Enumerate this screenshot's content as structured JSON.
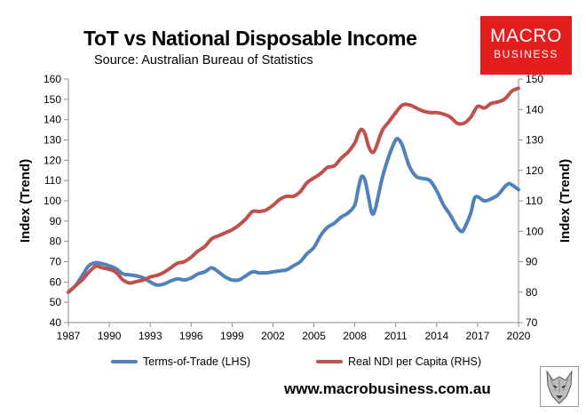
{
  "header": {
    "title": "ToT vs National Disposable Income",
    "subtitle": "Source: Australian Bureau of Statistics"
  },
  "logo": {
    "line1": "MACRO",
    "line2": "BUSINESS",
    "color": "#e41e1e"
  },
  "footer": {
    "website": "www.macrobusiness.com.au",
    "mascot_icon": "wolf-head-icon"
  },
  "chart_data": {
    "type": "line",
    "ylabel_left": "Index (Trend)",
    "ylabel_right": "Index (Trend)",
    "xlim": [
      1987,
      2020
    ],
    "x_ticks": [
      1987,
      1990,
      1993,
      1996,
      1999,
      2002,
      2005,
      2008,
      2011,
      2014,
      2017,
      2020
    ],
    "ylim_left": [
      40,
      160
    ],
    "y_ticks_left": [
      40,
      50,
      60,
      70,
      80,
      90,
      100,
      110,
      120,
      130,
      140,
      150,
      160
    ],
    "ylim_right": [
      70,
      150
    ],
    "y_ticks_right": [
      70,
      80,
      90,
      100,
      110,
      120,
      130,
      140,
      150
    ],
    "grid": false,
    "legend_position": "bottom",
    "series": [
      {
        "name": "Terms-of-Trade (LHS)",
        "axis": "left",
        "color": "#4f81bd",
        "points": [
          [
            1987.0,
            55
          ],
          [
            1987.5,
            58
          ],
          [
            1988.0,
            63
          ],
          [
            1988.5,
            68
          ],
          [
            1989.0,
            69.5
          ],
          [
            1989.5,
            69
          ],
          [
            1990.0,
            68
          ],
          [
            1990.5,
            66.5
          ],
          [
            1991.0,
            64
          ],
          [
            1991.5,
            63.5
          ],
          [
            1992.0,
            63
          ],
          [
            1992.5,
            62
          ],
          [
            1993.0,
            60
          ],
          [
            1993.5,
            58.5
          ],
          [
            1994.0,
            59
          ],
          [
            1994.5,
            60.5
          ],
          [
            1995.0,
            61.5
          ],
          [
            1995.5,
            61
          ],
          [
            1996.0,
            62
          ],
          [
            1996.5,
            64
          ],
          [
            1997.0,
            65
          ],
          [
            1997.5,
            67
          ],
          [
            1998.0,
            65
          ],
          [
            1998.5,
            62.5
          ],
          [
            1999.0,
            61
          ],
          [
            1999.5,
            61
          ],
          [
            2000.0,
            63
          ],
          [
            2000.5,
            65
          ],
          [
            2001.0,
            64.5
          ],
          [
            2001.5,
            64.5
          ],
          [
            2002.0,
            65
          ],
          [
            2002.5,
            65.5
          ],
          [
            2003.0,
            66
          ],
          [
            2003.5,
            68
          ],
          [
            2004.0,
            70
          ],
          [
            2004.5,
            74
          ],
          [
            2005.0,
            77
          ],
          [
            2005.5,
            83
          ],
          [
            2006.0,
            87
          ],
          [
            2006.5,
            89
          ],
          [
            2007.0,
            92
          ],
          [
            2007.5,
            94
          ],
          [
            2008.0,
            98
          ],
          [
            2008.25,
            106
          ],
          [
            2008.5,
            112
          ],
          [
            2008.75,
            110
          ],
          [
            2009.0,
            102
          ],
          [
            2009.25,
            94
          ],
          [
            2009.5,
            96
          ],
          [
            2010.0,
            111
          ],
          [
            2010.5,
            122
          ],
          [
            2011.0,
            130
          ],
          [
            2011.25,
            130
          ],
          [
            2011.5,
            127
          ],
          [
            2012.0,
            117
          ],
          [
            2012.5,
            112
          ],
          [
            2013.0,
            111
          ],
          [
            2013.5,
            110
          ],
          [
            2014.0,
            105
          ],
          [
            2014.5,
            98
          ],
          [
            2015.0,
            93
          ],
          [
            2015.5,
            87
          ],
          [
            2015.8,
            85
          ],
          [
            2016.0,
            86
          ],
          [
            2016.5,
            94
          ],
          [
            2016.75,
            101
          ],
          [
            2017.0,
            102
          ],
          [
            2017.5,
            100
          ],
          [
            2018.0,
            101
          ],
          [
            2018.5,
            103
          ],
          [
            2019.0,
            107
          ],
          [
            2019.3,
            108.5
          ],
          [
            2019.6,
            107.5
          ],
          [
            2020.0,
            105.5
          ]
        ]
      },
      {
        "name": "Real NDI per Capita (RHS)",
        "axis": "right",
        "color": "#c0504d",
        "points": [
          [
            1987.0,
            80
          ],
          [
            1987.5,
            82
          ],
          [
            1988.0,
            84
          ],
          [
            1988.5,
            86.5
          ],
          [
            1989.0,
            88.5
          ],
          [
            1989.5,
            88
          ],
          [
            1990.0,
            87.5
          ],
          [
            1990.5,
            86.5
          ],
          [
            1991.0,
            84
          ],
          [
            1991.5,
            83
          ],
          [
            1992.0,
            83.5
          ],
          [
            1992.5,
            84
          ],
          [
            1993.0,
            85
          ],
          [
            1993.5,
            85.5
          ],
          [
            1994.0,
            86.5
          ],
          [
            1994.5,
            88
          ],
          [
            1995.0,
            89.5
          ],
          [
            1995.5,
            90
          ],
          [
            1996.0,
            91.5
          ],
          [
            1996.5,
            93.5
          ],
          [
            1997.0,
            95
          ],
          [
            1997.5,
            97.5
          ],
          [
            1998.0,
            98.5
          ],
          [
            1998.5,
            99.5
          ],
          [
            1999.0,
            100.5
          ],
          [
            1999.5,
            102
          ],
          [
            2000.0,
            104
          ],
          [
            2000.5,
            106.5
          ],
          [
            2001.0,
            106.5
          ],
          [
            2001.5,
            107
          ],
          [
            2002.0,
            108.5
          ],
          [
            2002.5,
            110.5
          ],
          [
            2003.0,
            111.5
          ],
          [
            2003.5,
            111.5
          ],
          [
            2004.0,
            113
          ],
          [
            2004.5,
            116
          ],
          [
            2005.0,
            117.5
          ],
          [
            2005.5,
            119
          ],
          [
            2006.0,
            121
          ],
          [
            2006.5,
            121.5
          ],
          [
            2007.0,
            124
          ],
          [
            2007.5,
            126
          ],
          [
            2008.0,
            129
          ],
          [
            2008.25,
            132
          ],
          [
            2008.5,
            133.5
          ],
          [
            2008.75,
            132
          ],
          [
            2009.0,
            128
          ],
          [
            2009.25,
            126
          ],
          [
            2009.5,
            127
          ],
          [
            2010.0,
            133
          ],
          [
            2010.5,
            136
          ],
          [
            2011.0,
            139
          ],
          [
            2011.5,
            141.5
          ],
          [
            2012.0,
            141.5
          ],
          [
            2012.5,
            140.5
          ],
          [
            2013.0,
            139.5
          ],
          [
            2013.5,
            139
          ],
          [
            2014.0,
            139
          ],
          [
            2014.5,
            138.5
          ],
          [
            2015.0,
            137.5
          ],
          [
            2015.5,
            135.5
          ],
          [
            2016.0,
            135.5
          ],
          [
            2016.5,
            137.5
          ],
          [
            2017.0,
            141
          ],
          [
            2017.5,
            140.5
          ],
          [
            2018.0,
            142
          ],
          [
            2018.5,
            142.5
          ],
          [
            2019.0,
            143.5
          ],
          [
            2019.5,
            146
          ],
          [
            2020.0,
            147
          ]
        ]
      }
    ]
  }
}
